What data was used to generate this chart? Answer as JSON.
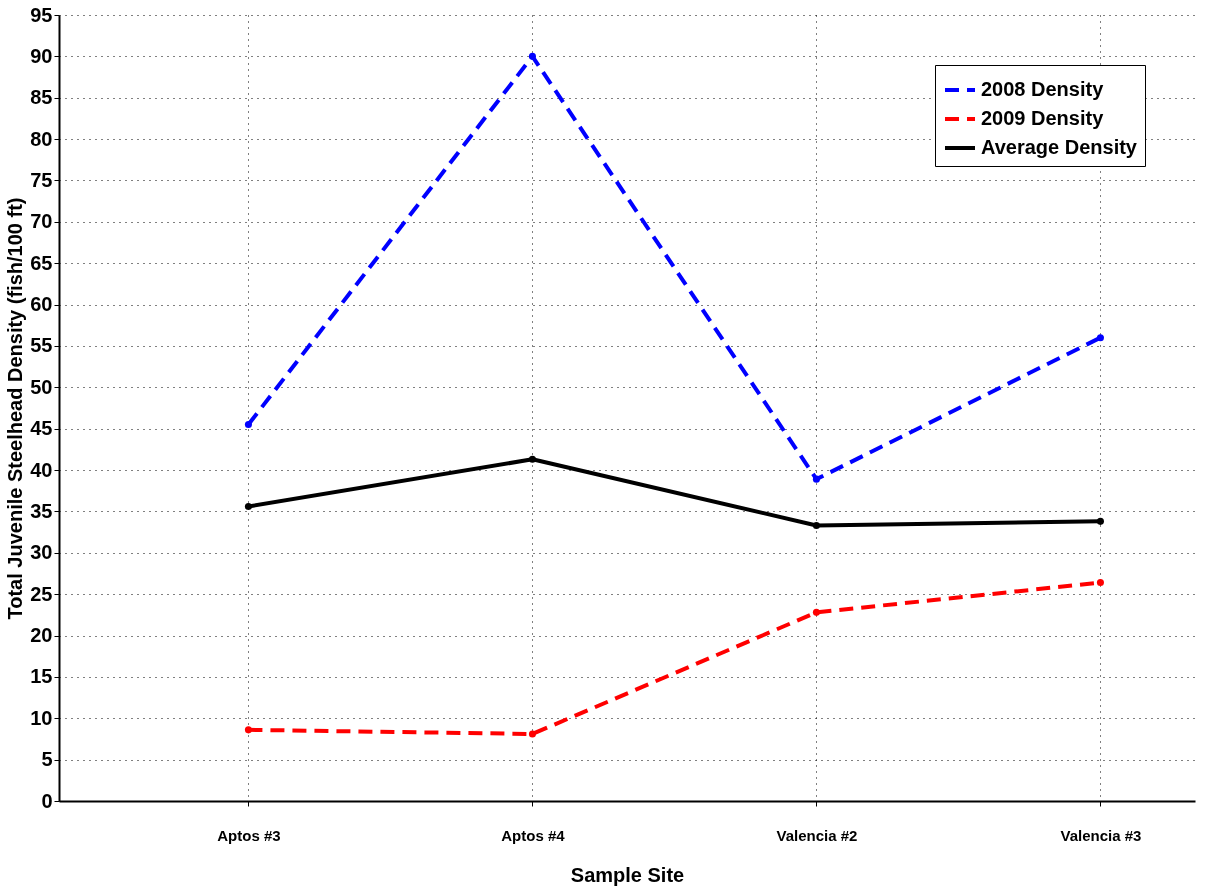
{
  "chart_data": {
    "type": "line",
    "xlabel": "Sample Site",
    "ylabel": "Total Juvenile Steelhead Density (fish/100 ft)",
    "categories": [
      "Aptos #3",
      "Aptos #4",
      "Valencia #2",
      "Valencia #3"
    ],
    "series": [
      {
        "name": "2008 Density",
        "color": "#0000ff",
        "line_style": "dashed",
        "values": [
          45.5,
          90,
          38.9,
          56
        ]
      },
      {
        "name": "2009 Density",
        "color": "#ff0000",
        "line_style": "dashed",
        "values": [
          8.6,
          8.1,
          22.8,
          26.4
        ]
      },
      {
        "name": "Average Density",
        "color": "#000000",
        "line_style": "solid",
        "values": [
          35.6,
          41.3,
          33.3,
          33.8
        ]
      }
    ],
    "ylim": [
      0,
      95
    ],
    "yticks": [
      0,
      5,
      10,
      15,
      20,
      25,
      30,
      35,
      40,
      45,
      50,
      55,
      60,
      65,
      70,
      75,
      80,
      85,
      90,
      95
    ],
    "grid": true,
    "legend": "top right",
    "marker": "circle"
  }
}
